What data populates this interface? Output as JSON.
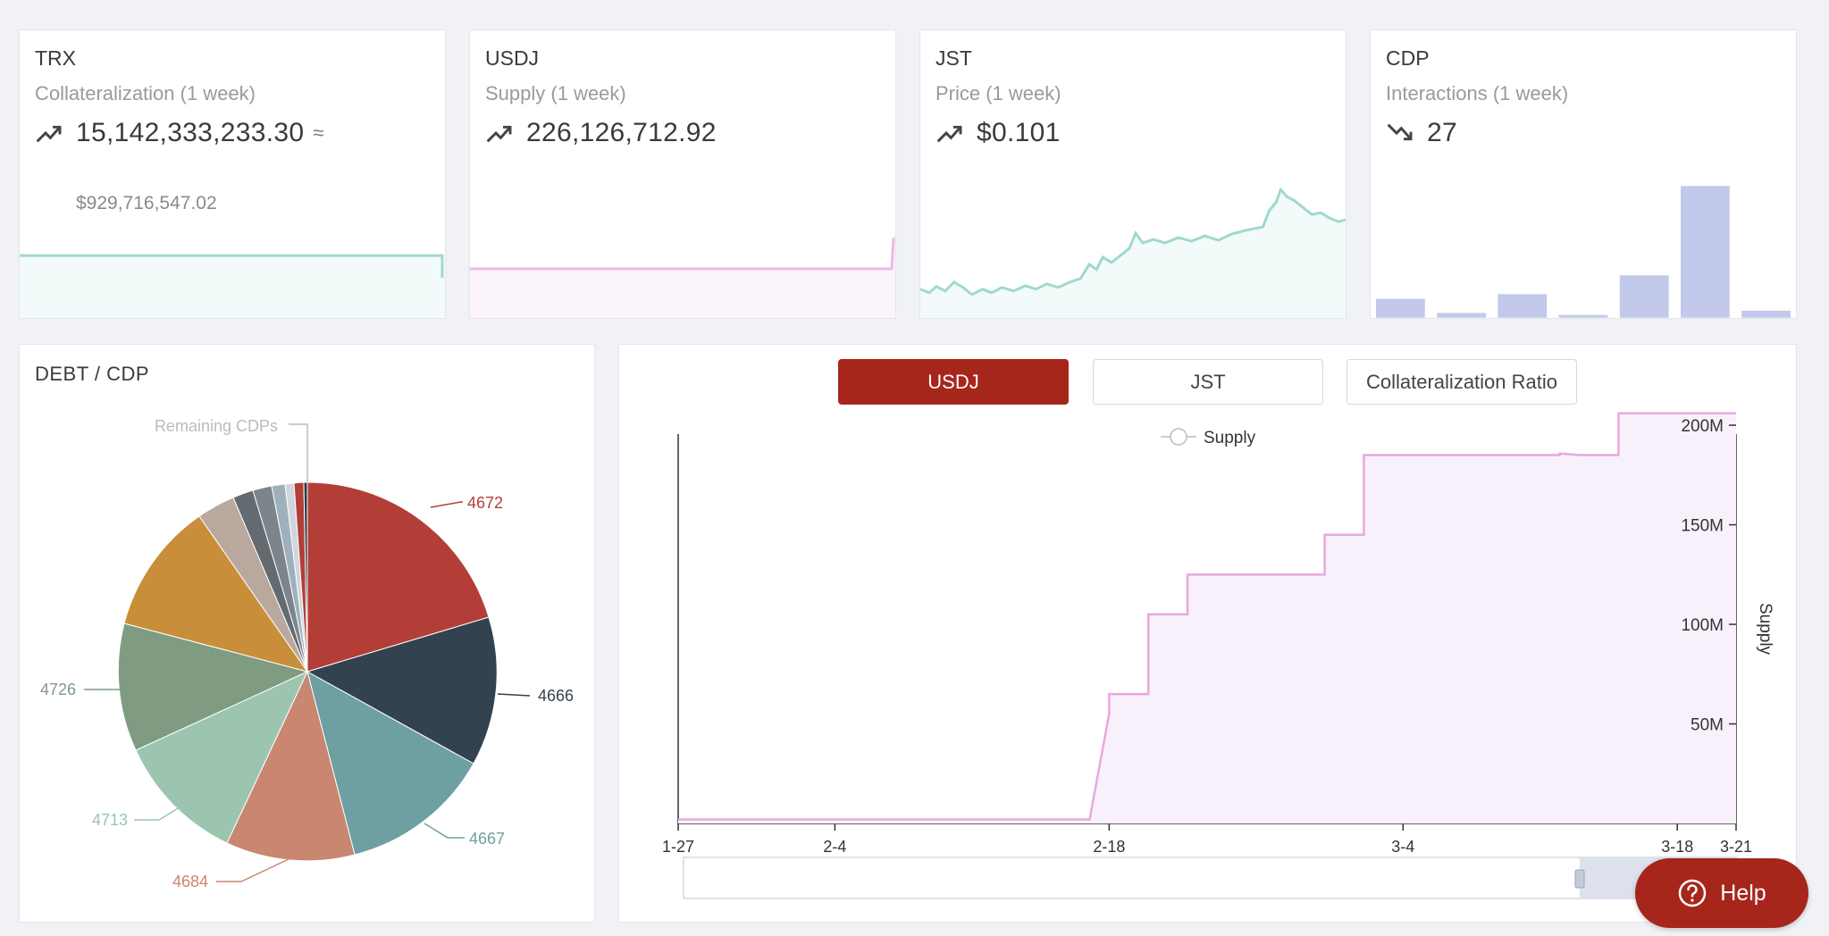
{
  "stats": [
    {
      "title": "TRX",
      "subtitle": "Collateralization (1 week)",
      "value": "15,142,333,233.30",
      "approx": "≈",
      "usd": "$929,716,547.02",
      "trend": "up"
    },
    {
      "title": "USDJ",
      "subtitle": "Supply (1 week)",
      "value": "226,126,712.92",
      "trend": "up"
    },
    {
      "title": "JST",
      "subtitle": "Price (1 week)",
      "value": "$0.101",
      "trend": "up"
    },
    {
      "title": "CDP",
      "subtitle": "Interactions (1 week)",
      "value": "27",
      "trend": "down"
    }
  ],
  "cdp_interaction_bars": [
    4,
    1,
    5,
    0.5,
    9,
    28,
    1.5
  ],
  "pie": {
    "title": "DEBT / CDP",
    "remaining_label": "Remaining CDPs",
    "labels": {
      "s4672": "4672",
      "s4666": "4666",
      "s4667": "4667",
      "s4684": "4684",
      "s4713": "4713",
      "s4726": "4726"
    }
  },
  "tabs": {
    "usdj": "USDJ",
    "jst": "JST",
    "ratio": "Collateralization Ratio"
  },
  "chart_data": {
    "type": "area",
    "series": [
      {
        "name": "Supply",
        "points": [
          [
            "1-27",
            2
          ],
          [
            "2-17",
            2
          ],
          [
            "2-18",
            55
          ],
          [
            "2-18",
            65
          ],
          [
            "2-20",
            65
          ],
          [
            "2-20",
            105
          ],
          [
            "2-22",
            105
          ],
          [
            "2-22",
            125
          ],
          [
            "2-29",
            125
          ],
          [
            "2-29",
            145
          ],
          [
            "3-2",
            145
          ],
          [
            "3-2",
            185
          ],
          [
            "3-12",
            185
          ],
          [
            "3-12",
            185.8
          ],
          [
            "3-13",
            185
          ],
          [
            "3-15",
            185
          ],
          [
            "3-15",
            206
          ],
          [
            "3-21",
            206
          ]
        ]
      }
    ],
    "x_ticks": [
      "1-27",
      "2-4",
      "2-18",
      "3-4",
      "3-18",
      "3-21"
    ],
    "y_ticks": [
      "50M",
      "100M",
      "150M",
      "200M"
    ],
    "ylabel": "Supply",
    "legend": "Supply",
    "color": "#e9a8de"
  },
  "help": {
    "label": "Help"
  },
  "colors": {
    "accent": "#a6261c",
    "spark_teal": "#9fd9cd",
    "spark_pink": "#eeb8e6",
    "bar": "#c3c9ea"
  }
}
